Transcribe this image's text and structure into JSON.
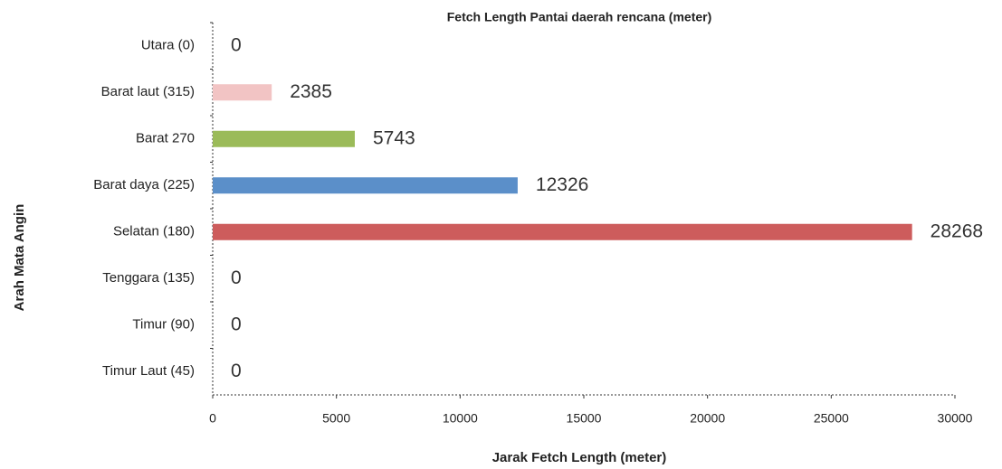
{
  "chart_data": {
    "type": "bar",
    "orientation": "horizontal",
    "title": "Fetch Length Pantai daerah rencana (meter)",
    "x_label": "Jarak Fetch Length (meter)",
    "y_label": "Arah Mata Angin",
    "categories": [
      "Utara (0)",
      "Barat laut (315)",
      "Barat 270",
      "Barat daya (225)",
      "Selatan (180)",
      "Tenggara (135)",
      "Timur (90)",
      "Timur Laut (45)"
    ],
    "values": [
      0,
      2385,
      5743,
      12326,
      28268,
      0,
      0,
      0
    ],
    "colors": [
      "#c0504d",
      "#f2c4c4",
      "#9bbb59",
      "#5b8fc9",
      "#cd5c5c",
      "#c0504d",
      "#c0504d",
      "#c0504d"
    ],
    "xlim": [
      0,
      30000
    ],
    "xticks": [
      0,
      5000,
      10000,
      15000,
      20000,
      25000,
      30000
    ],
    "grid": false
  }
}
